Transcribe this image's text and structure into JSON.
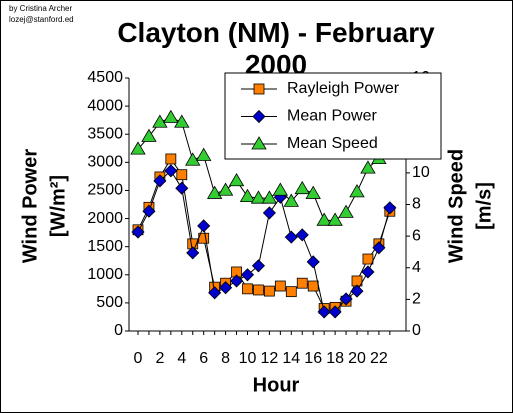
{
  "credits": [
    "by Cristina Archer",
    "lozej@stanford.ed"
  ],
  "chart_data": {
    "type": "line",
    "title": "Clayton (NM) - February 2000",
    "xlabel": "Hour",
    "ylabel": [
      "Wind Power",
      "[W/m²]"
    ],
    "y2label": [
      "Wind Speed",
      "[m/s]"
    ],
    "categories": [
      "0",
      null,
      "2",
      null,
      "4",
      null,
      "6",
      null,
      "8",
      null,
      "10",
      null,
      "12",
      null,
      "14",
      null,
      "16",
      null,
      "18",
      null,
      "20",
      null,
      "22",
      null
    ],
    "ylim": [
      0,
      4500
    ],
    "yticks": [
      0,
      500,
      1000,
      1500,
      2000,
      2500,
      3000,
      3500,
      4000,
      4500
    ],
    "y2lim": [
      0,
      16
    ],
    "y2ticks": [
      0,
      2,
      4,
      6,
      8,
      10,
      12,
      14,
      16
    ],
    "grid": false,
    "legend": "upper right",
    "series": [
      {
        "name": "Rayleigh Power",
        "color": "#ff8000",
        "marker": "square",
        "values": [
          1800,
          2200,
          2740,
          3060,
          2780,
          1550,
          1650,
          780,
          850,
          1050,
          750,
          730,
          710,
          800,
          700,
          850,
          800,
          400,
          420,
          530,
          890,
          1280,
          1550,
          2130
        ]
      },
      {
        "name": "Mean Power",
        "color": "#0000cc",
        "marker": "diamond",
        "values": [
          1760,
          2130,
          2670,
          2850,
          2540,
          1390,
          1870,
          680,
          770,
          890,
          1000,
          1160,
          2100,
          2380,
          1670,
          1710,
          1230,
          340,
          340,
          570,
          710,
          1050,
          1480,
          2190
        ]
      },
      {
        "name": "Mean Speed",
        "color": "#33cc33",
        "marker": "triangle",
        "axis": "y2",
        "values": [
          11.5,
          12.3,
          13.2,
          13.5,
          13.2,
          10.8,
          11.1,
          8.7,
          8.9,
          9.5,
          8.5,
          8.4,
          8.4,
          8.9,
          8.2,
          9.0,
          8.7,
          7.0,
          7.0,
          7.5,
          8.8,
          10.3,
          10.9,
          11.5
        ]
      }
    ]
  }
}
